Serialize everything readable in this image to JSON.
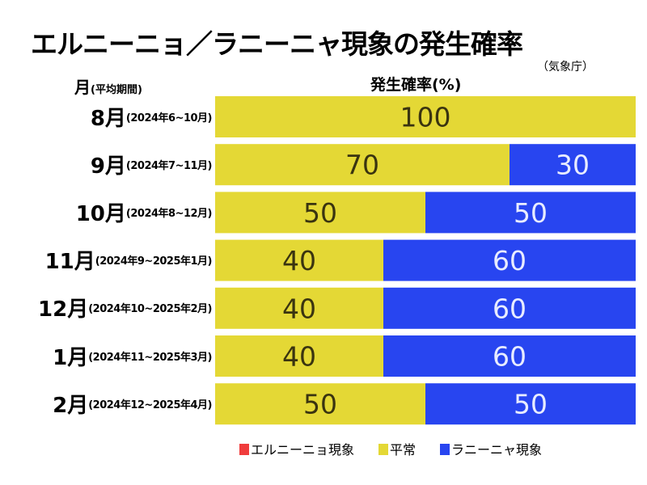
{
  "chart_data": {
    "type": "bar",
    "stacked": true,
    "orientation": "horizontal",
    "title": "エルニーニョ／ラニーニャ現象の発生確率",
    "source": "（気象庁）",
    "ylabel": "月",
    "ylabel_sub": "(平均期間)",
    "xlabel": "発生確率(%)",
    "xlim": [
      0,
      100
    ],
    "categories": [
      {
        "month": "8月",
        "period": "(2024年6~10月)"
      },
      {
        "month": "9月",
        "period": "(2024年7~11月)"
      },
      {
        "month": "10月",
        "period": "(2024年8~12月)"
      },
      {
        "month": "11月",
        "period": "(2024年9~2025年1月)"
      },
      {
        "month": "12月",
        "period": "(2024年10~2025年2月)"
      },
      {
        "month": "1月",
        "period": "(2024年11~2025年3月)"
      },
      {
        "month": "2月",
        "period": "(2024年12~2025年4月)"
      }
    ],
    "series": [
      {
        "name": "エルニーニョ現象",
        "color": "#f03c3c",
        "values": [
          0,
          0,
          0,
          0,
          0,
          0,
          0
        ]
      },
      {
        "name": "平常",
        "color": "#e4d835",
        "values": [
          100,
          70,
          50,
          40,
          40,
          40,
          50
        ]
      },
      {
        "name": "ラニーニャ現象",
        "color": "#2845f0",
        "values": [
          0,
          30,
          50,
          60,
          60,
          60,
          50
        ]
      }
    ],
    "legend_position": "bottom"
  }
}
